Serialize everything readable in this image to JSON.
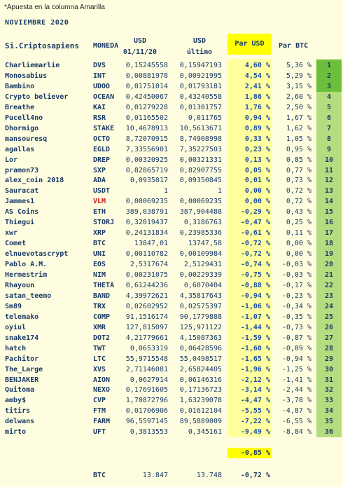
{
  "note": "*Apuesta en la columna Amarilla",
  "month": "NOVIEMBRE 2020",
  "headers": {
    "name": "Si.Criptosapiens",
    "moneda": "MONEDA",
    "usd1_top": "USD",
    "usd1_bottom": "01/11/20",
    "usd2_top": "USD",
    "usd2_bottom": "último",
    "par_usd": "Par USD",
    "par_btc": "Par BTC"
  },
  "rows": [
    {
      "name": "Charliemarlie",
      "coin": "DVS",
      "usd1": "0,15245558",
      "usd2": "0,15947193",
      "par": "4,60 %",
      "btc": "5,36 %",
      "rank": "1"
    },
    {
      "name": "Monosabius",
      "coin": "INT",
      "usd1": "0,00881978",
      "usd2": "0,00921995",
      "par": "4,54 %",
      "btc": "5,29 %",
      "rank": "2"
    },
    {
      "name": "Bambino",
      "coin": "UDOO",
      "usd1": "0,01751014",
      "usd2": "0,01793181",
      "par": "2,41 %",
      "btc": "3,15 %",
      "rank": "3"
    },
    {
      "name": "Crypto believer",
      "coin": "OCEAN",
      "usd1": "0,42450067",
      "usd2": "0,43240558",
      "par": "1,86 %",
      "btc": "2,60 %",
      "rank": "4"
    },
    {
      "name": "Breathe",
      "coin": "KAI",
      "usd1": "0,01279228",
      "usd2": "0,01301757",
      "par": "1,76 %",
      "btc": "2,50 %",
      "rank": "5"
    },
    {
      "name": "Pucell4no",
      "coin": "RSR",
      "usd1": "0,01165502",
      "usd2": "0,011765",
      "par": "0,94 %",
      "btc": "1,67 %",
      "rank": "6"
    },
    {
      "name": "Dhormigo",
      "coin": "STAKE",
      "usd1": "10,4678913",
      "usd2": "10,5613671",
      "par": "0,89 %",
      "btc": "1,62 %",
      "rank": "7"
    },
    {
      "name": "mansouresq",
      "coin": "OCTO",
      "usd1": "8,72070915",
      "usd2": "8,74908998",
      "par": "0,33 %",
      "btc": "1,05 %",
      "rank": "8"
    },
    {
      "name": "agallas",
      "coin": "EGLD",
      "usd1": "7,33556901",
      "usd2": "7,35227503",
      "par": "0,23 %",
      "btc": "0,95 %",
      "rank": "9"
    },
    {
      "name": "Lor",
      "coin": "DREP",
      "usd1": "0,00320925",
      "usd2": "0,00321331",
      "par": "0,13 %",
      "btc": "0,85 %",
      "rank": "10"
    },
    {
      "name": "pramon73",
      "coin": "SXP",
      "usd1": "0,82865719",
      "usd2": "0,82907755",
      "par": "0,05 %",
      "btc": "0,77 %",
      "rank": "11"
    },
    {
      "name": "alex_coin 2018",
      "coin": "ADA",
      "usd1": "0,0935017",
      "usd2": "0,09350845",
      "par": "0,01 %",
      "btc": "0,73 %",
      "rank": "12"
    },
    {
      "name": "Sauracat",
      "coin": "USDT",
      "usd1": "1",
      "usd2": "1",
      "par": "0,00 %",
      "btc": "0,72 %",
      "rank": "13"
    },
    {
      "name": "Jammes1",
      "coin": "VLM",
      "usd1": "0,00069235",
      "usd2": "0,00069235",
      "par": "0,00 %",
      "btc": "0,72 %",
      "rank": "14",
      "coin_red": true
    },
    {
      "name": "AS Coins",
      "coin": "ETH",
      "usd1": "389,038791",
      "usd2": "387,904488",
      "par": "-0,29 %",
      "btc": "0,43 %",
      "rank": "15"
    },
    {
      "name": "Thiegui",
      "coin": "STORJ",
      "usd1": "0,32019437",
      "usd2": "0,3186763",
      "par": "-0,47 %",
      "btc": "0,25 %",
      "rank": "16"
    },
    {
      "name": "xwr",
      "coin": "XRP",
      "usd1": "0,24131834",
      "usd2": "0,23985336",
      "par": "-0,61 %",
      "btc": "0,11 %",
      "rank": "17"
    },
    {
      "name": "Comet",
      "coin": "BTC",
      "usd1": "13847,01",
      "usd2": "13747,58",
      "par": "-0,72 %",
      "btc": "0,00 %",
      "rank": "18"
    },
    {
      "name": "elnuevotascrypt",
      "coin": "UNI",
      "usd1": "0,00110782",
      "usd2": "0,00109984",
      "par": "-0,72 %",
      "btc": "0,00 %",
      "rank": "19"
    },
    {
      "name": "Pablo A.M.",
      "coin": "EOS",
      "usd1": "2,5317674",
      "usd2": "2,5129431",
      "par": "-0,74 %",
      "btc": "-0,03 %",
      "rank": "20"
    },
    {
      "name": "Hermestrim",
      "coin": "NIM",
      "usd1": "0,00231075",
      "usd2": "0,00229339",
      "par": "-0,75 %",
      "btc": "-0,03 %",
      "rank": "21"
    },
    {
      "name": "Rhayoun",
      "coin": "THETA",
      "usd1": "0,61244236",
      "usd2": "0,6070404",
      "par": "-0,88 %",
      "btc": "-0,17 %",
      "rank": "22"
    },
    {
      "name": "satan_teemo",
      "coin": "BAND",
      "usd1": "4,39972621",
      "usd2": "4,35817643",
      "par": "-0,94 %",
      "btc": "-0,23 %",
      "rank": "23"
    },
    {
      "name": "Sm89",
      "coin": "TRX",
      "usd1": "0,02602952",
      "usd2": "0,02575397",
      "par": "-1,06 %",
      "btc": "-0,34 %",
      "rank": "24"
    },
    {
      "name": "telemako",
      "coin": "COMP",
      "usd1": "91,1516174",
      "usd2": "90,1779888",
      "par": "-1,07 %",
      "btc": "-0,35 %",
      "rank": "25"
    },
    {
      "name": "oyiul",
      "coin": "XMR",
      "usd1": "127,815097",
      "usd2": "125,971122",
      "par": "-1,44 %",
      "btc": "-0,73 %",
      "rank": "26"
    },
    {
      "name": "snake174",
      "coin": "DOT2",
      "usd1": "4,21779661",
      "usd2": "4,15087363",
      "par": "-1,59 %",
      "btc": "-0,87 %",
      "rank": "27"
    },
    {
      "name": "hatch",
      "coin": "TWT",
      "usd1": "0,0653319",
      "usd2": "0,06428596",
      "par": "-1,60 %",
      "btc": "-0,89 %",
      "rank": "28"
    },
    {
      "name": "Pachitor",
      "coin": "LTC",
      "usd1": "55,9715548",
      "usd2": "55,0498517",
      "par": "-1,65 %",
      "btc": "-0,94 %",
      "rank": "29"
    },
    {
      "name": "The_Large",
      "coin": "XVS",
      "usd1": "2,71146081",
      "usd2": "2,65824405",
      "par": "-1,96 %",
      "btc": "-1,25 %",
      "rank": "30"
    },
    {
      "name": "BENJAKER",
      "coin": "AION",
      "usd1": "0,0627914",
      "usd2": "0,06146316",
      "par": "-2,12 %",
      "btc": "-1,41 %",
      "rank": "31"
    },
    {
      "name": "Quitoma",
      "coin": "NEXO",
      "usd1": "0,17691605",
      "usd2": "0,17136723",
      "par": "-3,14 %",
      "btc": "-2,44 %",
      "rank": "32"
    },
    {
      "name": "amby$",
      "coin": "CVP",
      "usd1": "1,70872796",
      "usd2": "1,63239078",
      "par": "-4,47 %",
      "btc": "-3,78 %",
      "rank": "33"
    },
    {
      "name": "titirs",
      "coin": "FTM",
      "usd1": "0,01706906",
      "usd2": "0,01612104",
      "par": "-5,55 %",
      "btc": "-4,87 %",
      "rank": "34"
    },
    {
      "name": "delwans",
      "coin": "FARM",
      "usd1": "96,5597145",
      "usd2": "89,5889009",
      "par": "-7,22 %",
      "btc": "-6,55 %",
      "rank": "35"
    },
    {
      "name": "mirto",
      "coin": "UFT",
      "usd1": "0,3813553",
      "usd2": "0,345161",
      "par": "-9,49 %",
      "btc": "-8,84 %",
      "rank": "36"
    }
  ],
  "average": "-0,85 %",
  "btc_summary": {
    "label": "BTC",
    "usd1": "13.847",
    "usd2": "13.748",
    "par": "-0,72 %"
  },
  "colors": {
    "yellow": "#ffff00",
    "light_yellow": "#ffffa0",
    "green": "#b5dc7f",
    "dark_green": "#6cbf3c",
    "text": "#1a3a66",
    "red": "#d01818"
  }
}
